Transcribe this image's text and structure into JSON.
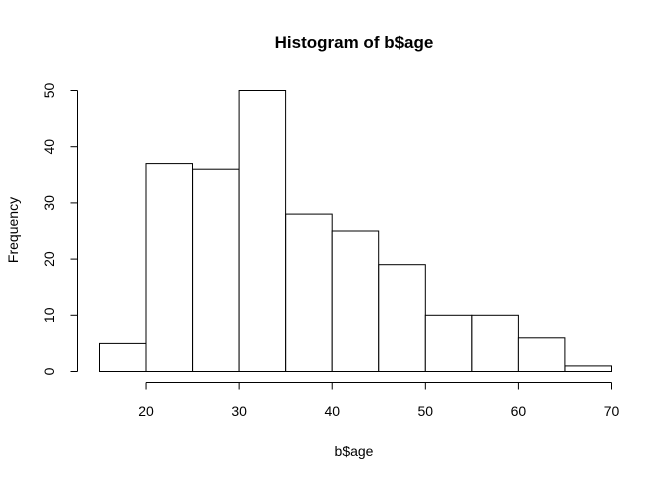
{
  "chart_data": {
    "type": "bar",
    "subtype": "histogram",
    "title": "Histogram of b$age",
    "xlabel": "b$age",
    "ylabel": "Frequency",
    "bin_edges": [
      15,
      20,
      25,
      30,
      35,
      40,
      45,
      50,
      55,
      60,
      65,
      70
    ],
    "values": [
      5,
      37,
      36,
      50,
      28,
      25,
      19,
      10,
      10,
      6,
      1
    ],
    "xlim": [
      15,
      70
    ],
    "ylim": [
      0,
      50
    ],
    "x_ticks": [
      20,
      30,
      40,
      50,
      60,
      70
    ],
    "y_ticks": [
      0,
      10,
      20,
      30,
      40,
      50
    ],
    "grid": false,
    "bar_fill": "#ffffff",
    "bar_stroke": "#000000"
  }
}
